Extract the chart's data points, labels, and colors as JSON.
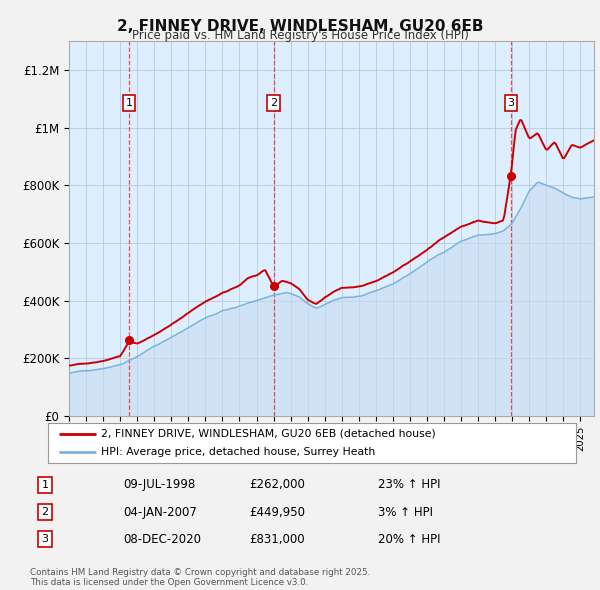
{
  "title": "2, FINNEY DRIVE, WINDLESHAM, GU20 6EB",
  "subtitle": "Price paid vs. HM Land Registry's House Price Index (HPI)",
  "background_color": "#f2f2f2",
  "chart_bg_color": "#ffffff",
  "legend_line1": "2, FINNEY DRIVE, WINDLESHAM, GU20 6EB (detached house)",
  "legend_line2": "HPI: Average price, detached house, Surrey Heath",
  "footer": "Contains HM Land Registry data © Crown copyright and database right 2025.\nThis data is licensed under the Open Government Licence v3.0.",
  "transactions": [
    {
      "label": "1",
      "date": "09-JUL-1998",
      "price": 262000,
      "hpi_pct": "23%",
      "year": 1998.52
    },
    {
      "label": "2",
      "date": "04-JAN-2007",
      "price": 449950,
      "hpi_pct": "3%",
      "year": 2007.01
    },
    {
      "label": "3",
      "date": "08-DEC-2020",
      "price": 831000,
      "hpi_pct": "20%",
      "year": 2020.93
    }
  ],
  "hpi_color": "#6baed6",
  "hpi_fill_color": "#c6dbef",
  "price_color": "#cc0000",
  "vline_color": "#cc4444",
  "ylim_max": 1300000,
  "yticks": [
    0,
    200000,
    400000,
    600000,
    800000,
    1000000,
    1200000
  ],
  "ytick_labels": [
    "£0",
    "£200K",
    "£400K",
    "£600K",
    "£800K",
    "£1M",
    "£1.2M"
  ],
  "table_data": [
    [
      "1",
      "09-JUL-1998",
      "£262,000",
      "23% ↑ HPI"
    ],
    [
      "2",
      "04-JAN-2007",
      "£449,950",
      "3% ↑ HPI"
    ],
    [
      "3",
      "08-DEC-2020",
      "£831,000",
      "20% ↑ HPI"
    ]
  ]
}
